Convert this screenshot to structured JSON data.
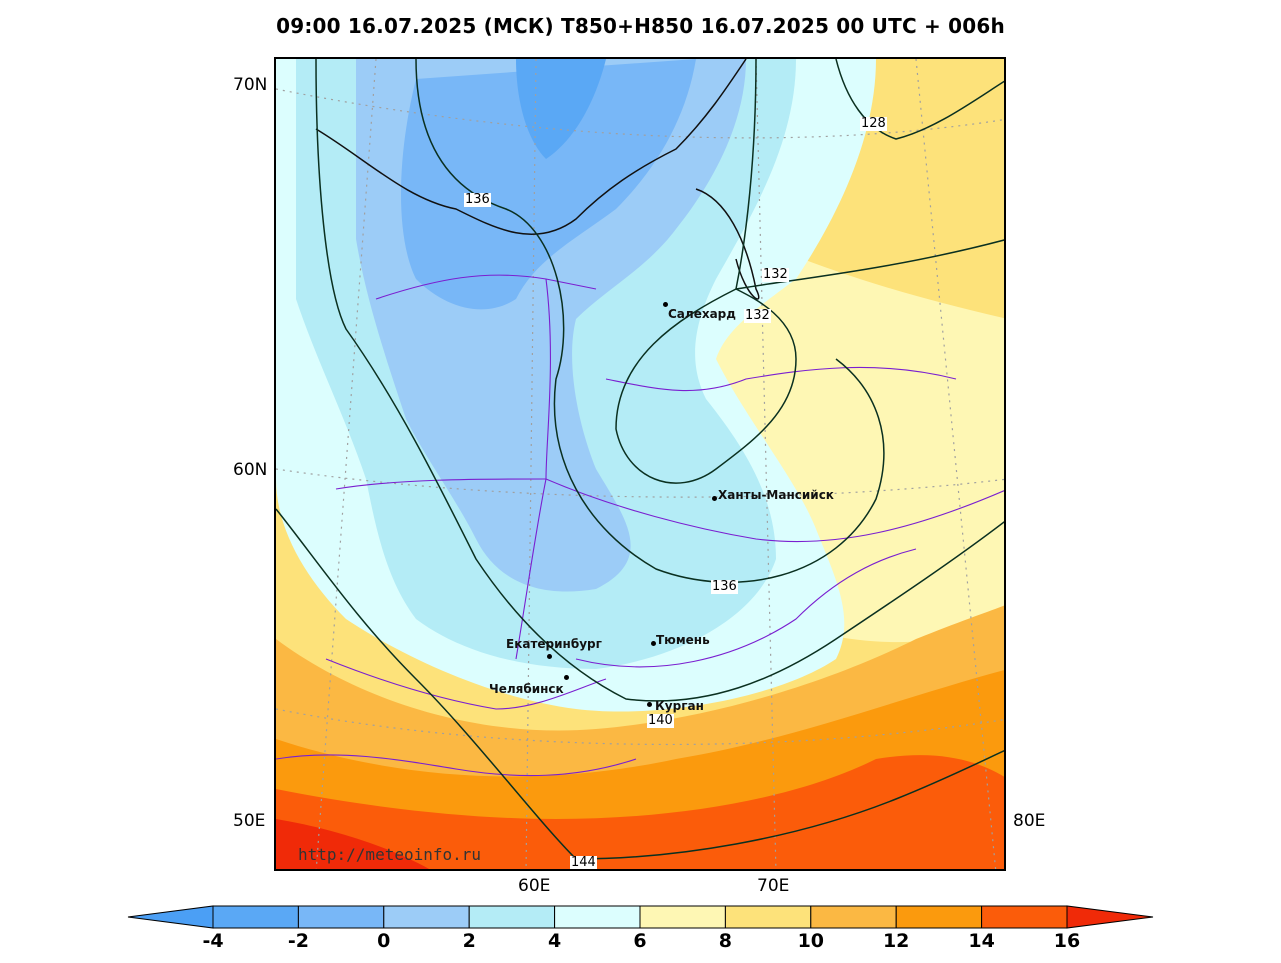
{
  "title": "09:00 16.07.2025 (МСК) T850+H850 16.07.2025 00 UTC + 006h",
  "lat_labels": [
    "70N",
    "60N",
    "50E"
  ],
  "lon_labels": [
    "60E",
    "70E",
    "80E"
  ],
  "cities": [
    {
      "name": "Салехард"
    },
    {
      "name": "Ханты-Мансийск"
    },
    {
      "name": "Екатеринбург"
    },
    {
      "name": "Тюмень"
    },
    {
      "name": "Челябинск"
    },
    {
      "name": "Курган"
    }
  ],
  "contour_labels": [
    "136",
    "128",
    "132",
    "132",
    "136",
    "140",
    "144"
  ],
  "watermark": "http://meteoinfo.ru",
  "colorbar": {
    "ticks": [
      "-4",
      "-2",
      "0",
      "2",
      "4",
      "6",
      "8",
      "10",
      "12",
      "14",
      "16"
    ],
    "colors": [
      "#4b9ff5",
      "#5aa8f5",
      "#78b7f7",
      "#9cccf7",
      "#b4ecf6",
      "#dcfefe",
      "#fef7b4",
      "#fde27a",
      "#fbb843",
      "#fb9a0d",
      "#fb5c0a",
      "#f02a08"
    ]
  },
  "field_colors": {
    "blue_dark": "#78b7f7",
    "blue_mid": "#9cccf7",
    "cyan": "#b4ecf6",
    "pale_cyan": "#dcfefe",
    "pale_yellow": "#fef7b4",
    "yellow": "#fde27a",
    "light_orange": "#fbb843",
    "orange": "#fb9a0d",
    "red_orange": "#fb5c0a"
  }
}
